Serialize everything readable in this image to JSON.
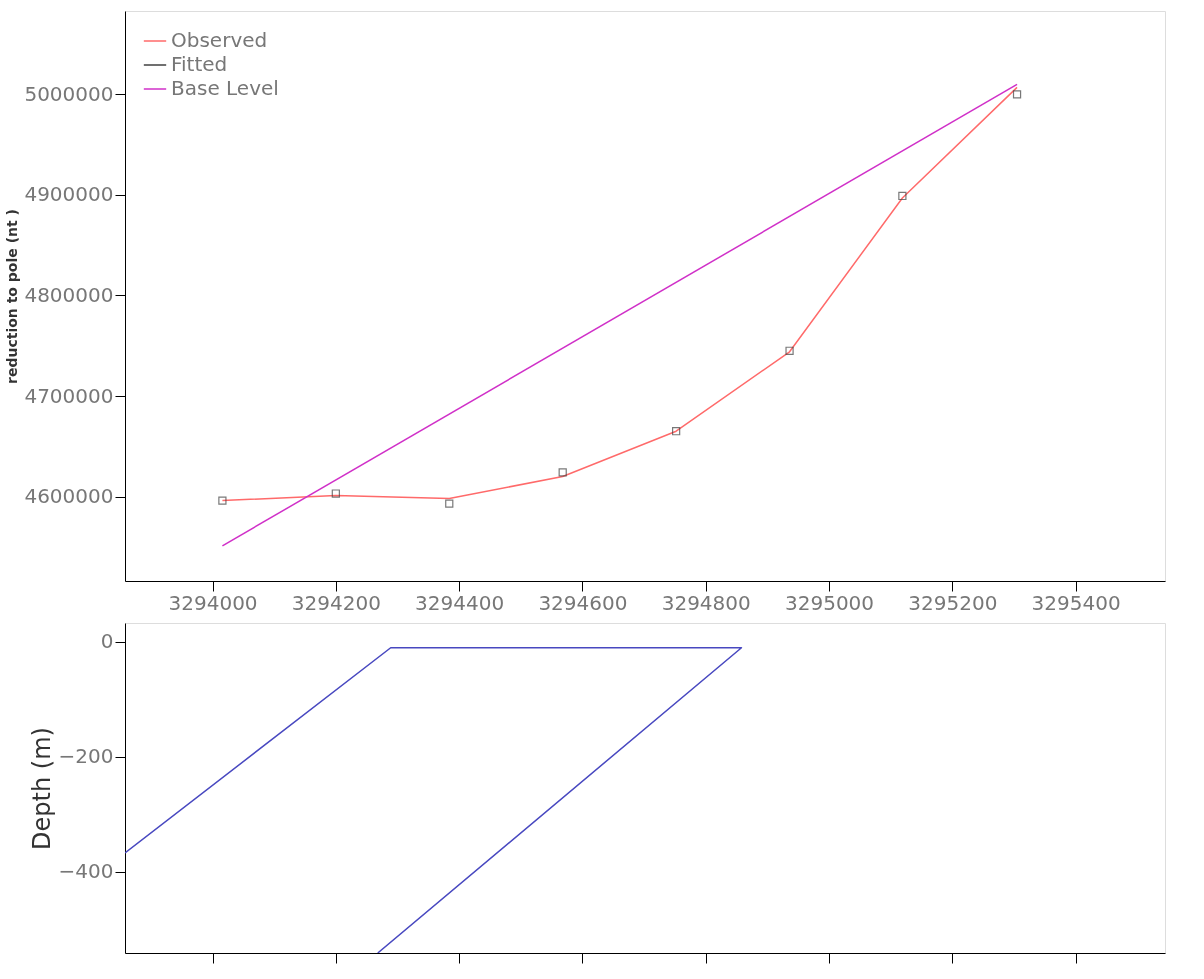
{
  "chart_data": [
    {
      "type": "line",
      "ylabel": "reduction to pole (nt )",
      "xlim": [
        3293858,
        3295545
      ],
      "ylim": [
        4516000,
        5083000
      ],
      "xticks": [
        3294000,
        3294200,
        3294400,
        3294600,
        3294800,
        3295000,
        3295200,
        3295400
      ],
      "yticks": [
        4600000,
        4700000,
        4800000,
        4900000,
        5000000
      ],
      "grid": false,
      "legend": "top left",
      "series": [
        {
          "name": "Observed",
          "type": "line",
          "color": "#ff6a6a",
          "line_style": "solid",
          "marker": "none",
          "x": [
            3294016,
            3294200,
            3294384,
            3294568,
            3294752,
            3294936,
            3295119,
            3295305
          ],
          "values": [
            4596000,
            4601000,
            4598000,
            4620000,
            4665000,
            4744000,
            4897000,
            5007000
          ]
        },
        {
          "name": "Fitted",
          "type": "scatter",
          "color": "#404040",
          "marker": "square",
          "x": [
            3294016,
            3294200,
            3294384,
            3294568,
            3294752,
            3294936,
            3295119,
            3295305
          ],
          "values": [
            4596000,
            4603000,
            4593000,
            4624000,
            4665000,
            4745000,
            4899000,
            5000000
          ]
        },
        {
          "name": "Base Level",
          "type": "line",
          "color": "#d030c8",
          "line_style": "solid",
          "marker": "none",
          "x": [
            3294016,
            3295305
          ],
          "values": [
            4551000,
            5010000
          ]
        }
      ]
    },
    {
      "type": "line",
      "ylabel": "Depth (m)",
      "xlim": [
        3293858,
        3295545
      ],
      "ylim": [
        -541,
        33
      ],
      "xticks": [
        3294000,
        3294200,
        3294400,
        3294600,
        3294800,
        3295000,
        3295200,
        3295400
      ],
      "yticks": [
        0,
        -200,
        -400
      ],
      "grid": false,
      "tick_labels": "y",
      "legend": false,
      "series": [
        {
          "type": "line",
          "color": "#4848c0",
          "line_style": "solid",
          "marker": "none",
          "x": [
            3293858,
            3294289,
            3294858,
            3294268
          ],
          "values": [
            -367,
            -10,
            -10,
            -541
          ]
        }
      ]
    }
  ]
}
